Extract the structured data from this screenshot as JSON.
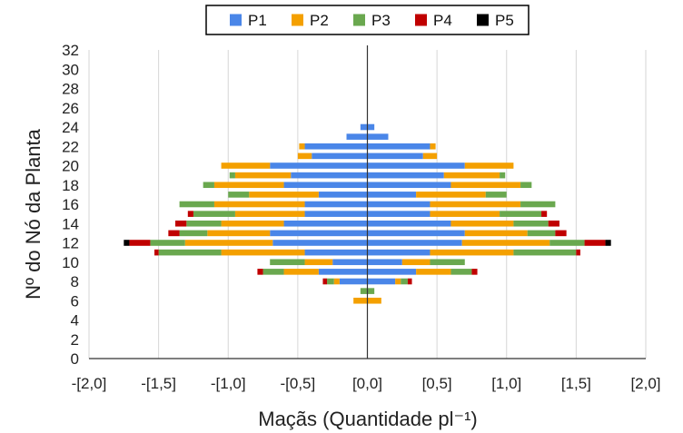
{
  "chart_data": {
    "type": "bar",
    "orientation": "horizontal",
    "stacking": "population-pyramid (mirrored around x = 0)",
    "title": "",
    "xlabel": "Maçãs (Quantidade pl⁻¹)",
    "ylabel": "Nº do Nó da Planta",
    "xlim": [
      -2.0,
      2.0
    ],
    "ylim": [
      0,
      32
    ],
    "x_ticks": [
      -2.0,
      -1.5,
      -1.0,
      -0.5,
      0.0,
      0.5,
      1.0,
      1.5,
      2.0
    ],
    "x_tick_labels": [
      "-[2,0]",
      "-[1,5]",
      "-[1,0]",
      "-[0,5]",
      "[0,0]",
      "[0,5]",
      "[1,0]",
      "[1,5]",
      "[2,0]"
    ],
    "y_ticks": [
      0,
      2,
      4,
      6,
      8,
      10,
      12,
      14,
      16,
      18,
      20,
      22,
      24,
      26,
      28,
      30,
      32
    ],
    "grid": "vertical",
    "legend_position": "top",
    "series": [
      {
        "name": "P1",
        "color": "#4a86e8"
      },
      {
        "name": "P2",
        "color": "#f4a000"
      },
      {
        "name": "P3",
        "color": "#6aa84f"
      },
      {
        "name": "P4",
        "color": "#c00000"
      },
      {
        "name": "P5",
        "color": "#000000"
      }
    ],
    "nodes": [
      {
        "node": 6,
        "values": [
          0.0,
          0.1,
          0.0,
          0.0,
          0.0
        ]
      },
      {
        "node": 7,
        "values": [
          0.0,
          0.0,
          0.05,
          0.0,
          0.0
        ]
      },
      {
        "node": 8,
        "values": [
          0.2,
          0.04,
          0.05,
          0.03,
          0.0
        ]
      },
      {
        "node": 9,
        "values": [
          0.35,
          0.25,
          0.15,
          0.04,
          0.0
        ]
      },
      {
        "node": 10,
        "values": [
          0.25,
          0.2,
          0.25,
          0.0,
          0.0
        ]
      },
      {
        "node": 11,
        "values": [
          0.45,
          0.6,
          0.45,
          0.03,
          0.0
        ]
      },
      {
        "node": 12,
        "values": [
          0.68,
          0.63,
          0.25,
          0.15,
          0.04
        ]
      },
      {
        "node": 13,
        "values": [
          0.7,
          0.45,
          0.2,
          0.08,
          0.0
        ]
      },
      {
        "node": 14,
        "values": [
          0.6,
          0.45,
          0.25,
          0.08,
          0.0
        ]
      },
      {
        "node": 15,
        "values": [
          0.45,
          0.5,
          0.3,
          0.04,
          0.0
        ]
      },
      {
        "node": 16,
        "values": [
          0.45,
          0.65,
          0.25,
          0.0,
          0.0
        ]
      },
      {
        "node": 17,
        "values": [
          0.35,
          0.5,
          0.15,
          0.0,
          0.0
        ]
      },
      {
        "node": 18,
        "values": [
          0.6,
          0.5,
          0.08,
          0.0,
          0.0
        ]
      },
      {
        "node": 19,
        "values": [
          0.55,
          0.4,
          0.04,
          0.0,
          0.0
        ]
      },
      {
        "node": 20,
        "values": [
          0.7,
          0.35,
          0.0,
          0.0,
          0.0
        ]
      },
      {
        "node": 21,
        "values": [
          0.4,
          0.1,
          0.0,
          0.0,
          0.0
        ]
      },
      {
        "node": 22,
        "values": [
          0.45,
          0.04,
          0.0,
          0.0,
          0.0
        ]
      },
      {
        "node": 23,
        "values": [
          0.15,
          0.0,
          0.0,
          0.0,
          0.0
        ]
      },
      {
        "node": 24,
        "values": [
          0.05,
          0.0,
          0.0,
          0.0,
          0.0
        ]
      }
    ]
  }
}
